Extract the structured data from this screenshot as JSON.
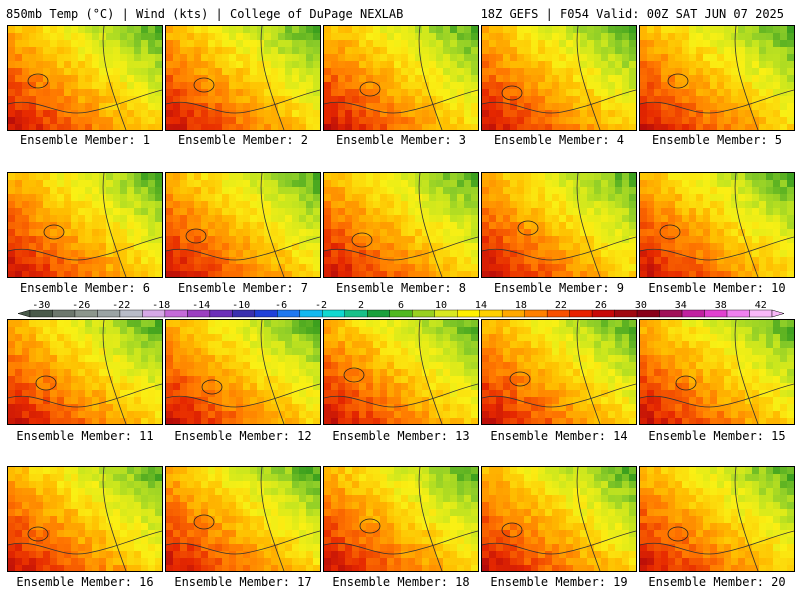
{
  "header": {
    "left": "850mb Temp (°C) | Wind (kts) | College of DuPage NEXLAB",
    "right": "18Z GEFS | F054 Valid: 00Z SAT JUN 07 2025"
  },
  "member_label_prefix": "Ensemble Member: ",
  "members": [
    "1",
    "2",
    "3",
    "4",
    "5",
    "6",
    "7",
    "8",
    "9",
    "10",
    "11",
    "12",
    "13",
    "14",
    "15",
    "16",
    "17",
    "18",
    "19",
    "20"
  ],
  "colorbar": {
    "tick_labels": [
      "-30",
      "-26",
      "-22",
      "-18",
      "-14",
      "-10",
      "-6",
      "-2",
      "2",
      "6",
      "10",
      "14",
      "18",
      "22",
      "26",
      "30",
      "34",
      "38",
      "42"
    ],
    "colors": [
      "#4a5a4a",
      "#6d786d",
      "#8c968c",
      "#9aa3a3",
      "#b8bcc8",
      "#d6a8e6",
      "#c46ad8",
      "#9b3fc0",
      "#6c2fb8",
      "#3a2fae",
      "#2040d8",
      "#1f78f0",
      "#12b8f0",
      "#10d8d0",
      "#18c088",
      "#1aa03c",
      "#50b820",
      "#98d020",
      "#d8e820",
      "#fff000",
      "#ffd000",
      "#ffa800",
      "#ff8000",
      "#f85000",
      "#e82000",
      "#c80808",
      "#a00810",
      "#880018",
      "#a01058",
      "#c020a0",
      "#e040d0",
      "#f080f0",
      "#f8b8f8"
    ]
  }
}
